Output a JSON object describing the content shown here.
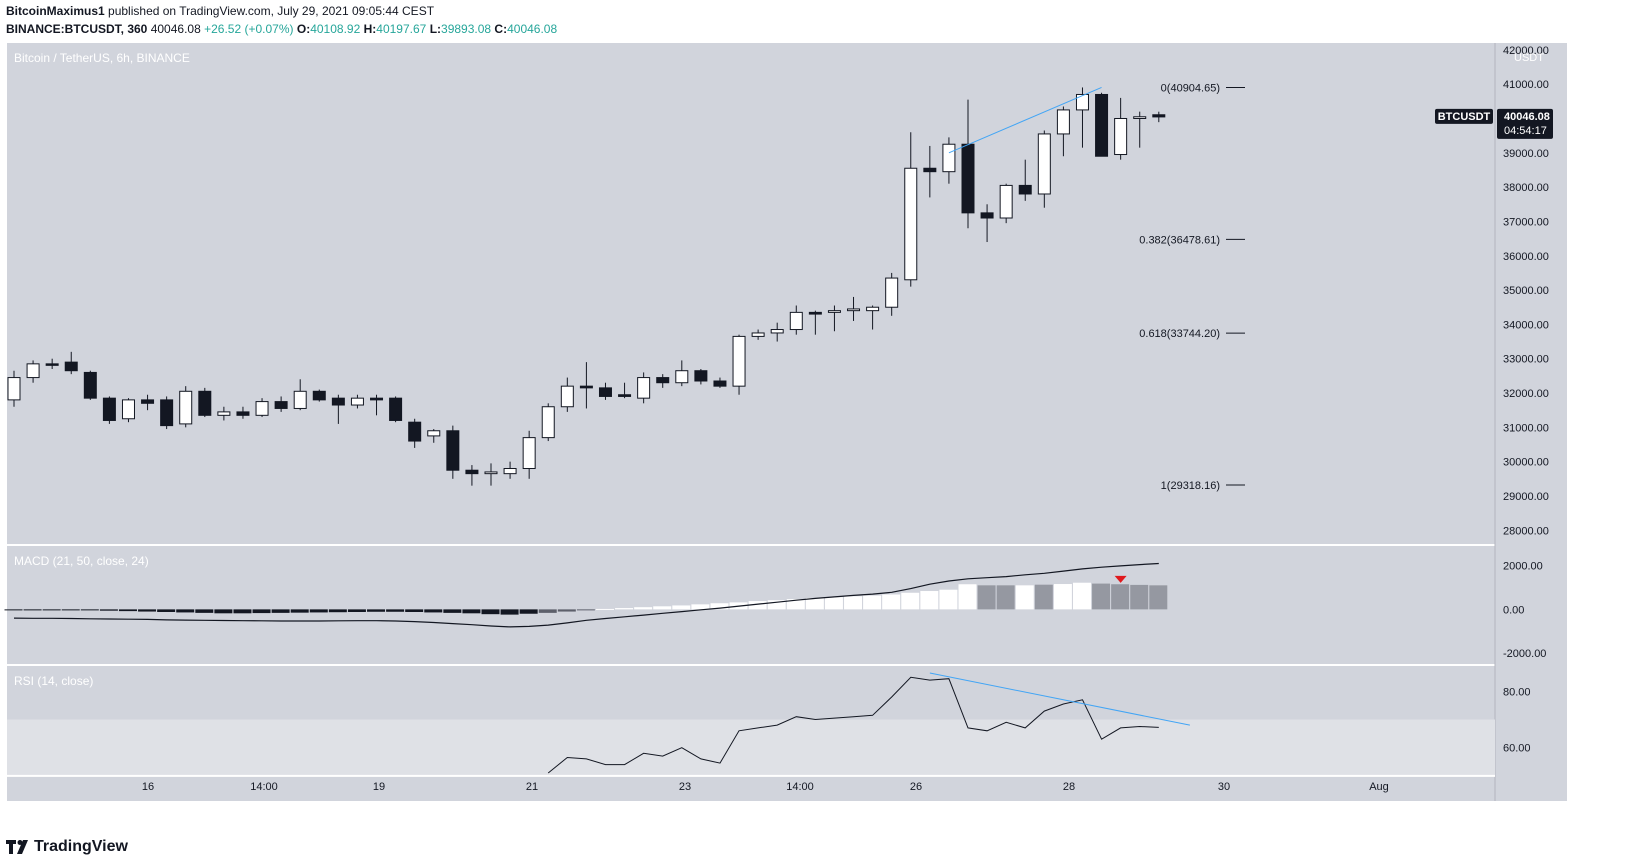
{
  "header": {
    "publisher_line": "BitcoinMaximus1 published on TradingView.com, July 29, 2021 09:05:44 CEST",
    "publisher_name": "BitcoinMaximus1",
    "publisher_rest": " published on TradingView.com, July 29, 2021 09:05:44 CEST",
    "symbol": "BINANCE:BTCUSDT, 360",
    "last": "40046.08",
    "change": "+26.52 (+0.07%)",
    "o_label": "O:",
    "o_value": "40108.92",
    "h_label": "H:",
    "h_value": "40197.67",
    "l_label": "L:",
    "l_value": "39893.08",
    "c_label": "C:",
    "c_value": "40046.08"
  },
  "footer": {
    "brand": "TradingView"
  },
  "colors": {
    "pane_bg": "#d1d4dc",
    "rsi_band": "#dfe1e6",
    "bull": "#ffffff",
    "bear": "#131722",
    "hist_falling": "#9598a1",
    "trendline": "#42a5f5",
    "arrow": "#e0191d"
  },
  "chart_data": [
    {
      "type": "candlestick",
      "title": "Bitcoin / TetherUS, 6h, BINANCE",
      "ylabel": "USDT",
      "ylim": [
        27600,
        42200
      ],
      "yticks": [
        "28000.00",
        "29000.00",
        "30000.00",
        "31000.00",
        "32000.00",
        "33000.00",
        "34000.00",
        "35000.00",
        "36000.00",
        "37000.00",
        "38000.00",
        "39000.00",
        "40000.00",
        "41000.00",
        "42000.00"
      ],
      "last_price": {
        "symbol": "BTCUSDT",
        "price": "40046.08",
        "countdown": "04:54:17"
      },
      "xticks": [
        "16",
        "14:00",
        "19",
        "21",
        "23",
        "14:00",
        "26",
        "28",
        "30",
        "Aug"
      ],
      "candles": [
        {
          "o": 31800,
          "h": 32650,
          "l": 31600,
          "c": 32450
        },
        {
          "o": 32450,
          "h": 32950,
          "l": 32300,
          "c": 32850
        },
        {
          "o": 32850,
          "h": 33000,
          "l": 32700,
          "c": 32820
        },
        {
          "o": 32900,
          "h": 33200,
          "l": 32550,
          "c": 32650
        },
        {
          "o": 32600,
          "h": 32650,
          "l": 31800,
          "c": 31850
        },
        {
          "o": 31850,
          "h": 31900,
          "l": 31100,
          "c": 31200
        },
        {
          "o": 31250,
          "h": 31850,
          "l": 31150,
          "c": 31800
        },
        {
          "o": 31800,
          "h": 31950,
          "l": 31500,
          "c": 31700
        },
        {
          "o": 31800,
          "h": 31900,
          "l": 30950,
          "c": 31050
        },
        {
          "o": 31100,
          "h": 32200,
          "l": 31000,
          "c": 32050
        },
        {
          "o": 32050,
          "h": 32150,
          "l": 31300,
          "c": 31350
        },
        {
          "o": 31350,
          "h": 31600,
          "l": 31200,
          "c": 31450
        },
        {
          "o": 31450,
          "h": 31600,
          "l": 31250,
          "c": 31350
        },
        {
          "o": 31350,
          "h": 31850,
          "l": 31300,
          "c": 31750
        },
        {
          "o": 31750,
          "h": 31900,
          "l": 31450,
          "c": 31550
        },
        {
          "o": 31550,
          "h": 32400,
          "l": 31500,
          "c": 32050
        },
        {
          "o": 32050,
          "h": 32100,
          "l": 31750,
          "c": 31800
        },
        {
          "o": 31850,
          "h": 31950,
          "l": 31100,
          "c": 31650
        },
        {
          "o": 31650,
          "h": 31950,
          "l": 31550,
          "c": 31850
        },
        {
          "o": 31850,
          "h": 31950,
          "l": 31350,
          "c": 31800
        },
        {
          "o": 31850,
          "h": 31900,
          "l": 31150,
          "c": 31200
        },
        {
          "o": 31150,
          "h": 31250,
          "l": 30400,
          "c": 30600
        },
        {
          "o": 30750,
          "h": 30950,
          "l": 30550,
          "c": 30900
        },
        {
          "o": 30900,
          "h": 31050,
          "l": 29500,
          "c": 29750
        },
        {
          "o": 29750,
          "h": 29900,
          "l": 29300,
          "c": 29650
        },
        {
          "o": 29650,
          "h": 29950,
          "l": 29300,
          "c": 29700
        },
        {
          "o": 29650,
          "h": 30000,
          "l": 29500,
          "c": 29800
        },
        {
          "o": 29800,
          "h": 30900,
          "l": 29500,
          "c": 30700
        },
        {
          "o": 30700,
          "h": 31700,
          "l": 30600,
          "c": 31600
        },
        {
          "o": 31600,
          "h": 32450,
          "l": 31450,
          "c": 32200
        },
        {
          "o": 32200,
          "h": 32900,
          "l": 31550,
          "c": 32150
        },
        {
          "o": 32150,
          "h": 32300,
          "l": 31800,
          "c": 31900
        },
        {
          "o": 31950,
          "h": 32300,
          "l": 31850,
          "c": 31900
        },
        {
          "o": 31850,
          "h": 32600,
          "l": 31700,
          "c": 32450
        },
        {
          "o": 32450,
          "h": 32550,
          "l": 32150,
          "c": 32300
        },
        {
          "o": 32300,
          "h": 32950,
          "l": 32200,
          "c": 32650
        },
        {
          "o": 32650,
          "h": 32700,
          "l": 32250,
          "c": 32350
        },
        {
          "o": 32350,
          "h": 32450,
          "l": 32150,
          "c": 32200
        },
        {
          "o": 32200,
          "h": 33700,
          "l": 31950,
          "c": 33650
        },
        {
          "o": 33650,
          "h": 33850,
          "l": 33550,
          "c": 33750
        },
        {
          "o": 33750,
          "h": 34050,
          "l": 33500,
          "c": 33850
        },
        {
          "o": 33850,
          "h": 34550,
          "l": 33700,
          "c": 34350
        },
        {
          "o": 34350,
          "h": 34400,
          "l": 33700,
          "c": 34300
        },
        {
          "o": 34350,
          "h": 34550,
          "l": 33800,
          "c": 34400
        },
        {
          "o": 34400,
          "h": 34800,
          "l": 34100,
          "c": 34450
        },
        {
          "o": 34400,
          "h": 34550,
          "l": 33850,
          "c": 34500
        },
        {
          "o": 34500,
          "h": 35500,
          "l": 34250,
          "c": 35350
        },
        {
          "o": 35300,
          "h": 39600,
          "l": 35100,
          "c": 38550
        },
        {
          "o": 38550,
          "h": 39200,
          "l": 37700,
          "c": 38450
        },
        {
          "o": 38450,
          "h": 39450,
          "l": 38100,
          "c": 39250
        },
        {
          "o": 39250,
          "h": 40550,
          "l": 36800,
          "c": 37250
        },
        {
          "o": 37250,
          "h": 37500,
          "l": 36400,
          "c": 37100
        },
        {
          "o": 37100,
          "h": 38100,
          "l": 36950,
          "c": 38050
        },
        {
          "o": 38050,
          "h": 38800,
          "l": 37600,
          "c": 37800
        },
        {
          "o": 37800,
          "h": 39650,
          "l": 37400,
          "c": 39550
        },
        {
          "o": 39550,
          "h": 40350,
          "l": 38900,
          "c": 40250
        },
        {
          "o": 40250,
          "h": 40904.65,
          "l": 39150,
          "c": 40700
        },
        {
          "o": 40700,
          "h": 40750,
          "l": 38950,
          "c": 38900
        },
        {
          "o": 38950,
          "h": 40600,
          "l": 38800,
          "c": 40000
        },
        {
          "o": 40000,
          "h": 40200,
          "l": 39150,
          "c": 40050
        },
        {
          "o": 40108.92,
          "h": 40197.67,
          "l": 39893.08,
          "c": 40046.08
        }
      ],
      "fibonacci": [
        {
          "label": "0(40904.65)",
          "value": 40904.65
        },
        {
          "label": "0.382(36478.61)",
          "value": 36478.61
        },
        {
          "label": "0.618(33744.20)",
          "value": 33744.2
        },
        {
          "label": "1(29318.16)",
          "value": 29318.16
        }
      ],
      "trendline": {
        "from_candle": 49,
        "from_value": 39000,
        "to_candle": 57,
        "to_value": 40904.65
      }
    },
    {
      "type": "histogram",
      "title": "MACD (21, 50, close, 24)",
      "ylim": [
        -2500,
        2900
      ],
      "yticks": [
        "2000.00",
        "0.00",
        "-2000.00"
      ],
      "histogram": [
        -30,
        -40,
        -40,
        -40,
        -40,
        -60,
        -80,
        -100,
        -120,
        -140,
        -160,
        -180,
        -180,
        -170,
        -160,
        -150,
        -140,
        -130,
        -120,
        -110,
        -110,
        -120,
        -140,
        -160,
        -180,
        -220,
        -240,
        -200,
        -160,
        -100,
        -40,
        20,
        60,
        100,
        140,
        180,
        230,
        280,
        320,
        380,
        420,
        470,
        520,
        560,
        600,
        630,
        680,
        760,
        840,
        900,
        1150,
        1100,
        1100,
        1100,
        1130,
        1160,
        1220,
        1180,
        1150,
        1120,
        1100
      ],
      "hist_falling": [
        false,
        false,
        false,
        false,
        false,
        false,
        false,
        false,
        false,
        false,
        false,
        false,
        false,
        false,
        false,
        false,
        false,
        false,
        false,
        false,
        false,
        false,
        false,
        false,
        false,
        false,
        false,
        false,
        true,
        true,
        true,
        false,
        false,
        false,
        false,
        false,
        false,
        false,
        false,
        false,
        false,
        false,
        false,
        false,
        false,
        false,
        false,
        false,
        false,
        false,
        false,
        true,
        true,
        false,
        true,
        false,
        false,
        true,
        true,
        true,
        true
      ],
      "macd_line": [
        -400,
        -410,
        -410,
        -420,
        -430,
        -440,
        -450,
        -460,
        -480,
        -490,
        -500,
        -510,
        -520,
        -525,
        -530,
        -530,
        -530,
        -525,
        -520,
        -520,
        -530,
        -560,
        -600,
        -650,
        -700,
        -760,
        -800,
        -780,
        -720,
        -620,
        -500,
        -420,
        -340,
        -260,
        -180,
        -100,
        -20,
        60,
        150,
        240,
        330,
        420,
        500,
        570,
        640,
        700,
        780,
        950,
        1150,
        1300,
        1400,
        1450,
        1500,
        1580,
        1650,
        1750,
        1850,
        1930,
        1990,
        2050,
        2100
      ],
      "signal_arrow": {
        "candle": 58,
        "direction": "down"
      }
    },
    {
      "type": "line",
      "title": "RSI (14, close)",
      "ylim": [
        51,
        89
      ],
      "yticks": [
        "80.00",
        "60.00"
      ],
      "band": [
        50,
        70
      ],
      "values": [
        null,
        null,
        null,
        null,
        null,
        null,
        null,
        null,
        null,
        null,
        null,
        null,
        null,
        null,
        null,
        null,
        null,
        null,
        null,
        null,
        null,
        null,
        null,
        null,
        null,
        null,
        null,
        null,
        51,
        56.5,
        56,
        54,
        54,
        58,
        57,
        60,
        56,
        54.5,
        66,
        67,
        68,
        71,
        70,
        70.5,
        71,
        71.5,
        78,
        85,
        84,
        84.5,
        67,
        66,
        69,
        67,
        73,
        75.5,
        77,
        63,
        67,
        67.5,
        67.2
      ],
      "trendline": {
        "from_candle": 48,
        "from_value": 86.5,
        "to_candle": 61,
        "to_value": 68
      }
    }
  ]
}
